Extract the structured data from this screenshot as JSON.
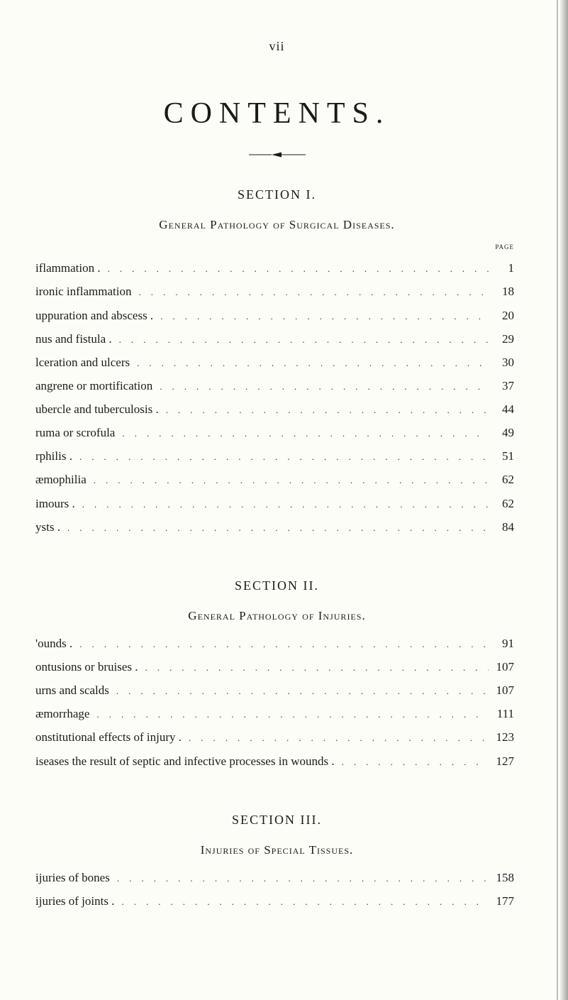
{
  "roman_page": "vii",
  "book_title": "CONTENTS.",
  "page_label": "page",
  "sections": [
    {
      "label": "SECTION   I.",
      "subtitle": "General Pathology of Surgical Diseases.",
      "show_page_header": true,
      "entries": [
        {
          "label": "iflammation .",
          "page": "1"
        },
        {
          "label": "ironic inflammation",
          "page": "18"
        },
        {
          "label": "uppuration and abscess  .",
          "page": "20"
        },
        {
          "label": "nus and fistula .",
          "page": "29"
        },
        {
          "label": "lceration and ulcers",
          "page": "30"
        },
        {
          "label": "angrene or mortification",
          "page": "37"
        },
        {
          "label": "ubercle and tuberculosis .",
          "page": "44"
        },
        {
          "label": "ruma or scrofula",
          "page": "49"
        },
        {
          "label": "rphilis .",
          "page": "51"
        },
        {
          "label": "æmophilia",
          "page": "62"
        },
        {
          "label": "imours .",
          "page": "62"
        },
        {
          "label": "ysts .",
          "page": "84"
        }
      ]
    },
    {
      "label": "SECTION   II.",
      "subtitle": "General Pathology of Injuries.",
      "show_page_header": false,
      "entries": [
        {
          "label": "'ounds .",
          "page": "91"
        },
        {
          "label": "ontusions or bruises  .",
          "page": "107"
        },
        {
          "label": "urns and scalds",
          "page": "107"
        },
        {
          "label": "æmorrhage",
          "page": "111"
        },
        {
          "label": "onstitutional effects of injury  .",
          "page": "123"
        },
        {
          "label": "iseases the result of septic and infective processes in wounds .",
          "page": "127"
        }
      ]
    },
    {
      "label": "SECTION   III.",
      "subtitle": "Injuries of Special Tissues.",
      "show_page_header": false,
      "entries": [
        {
          "label": "ijuries of bones",
          "page": "158"
        },
        {
          "label": "ijuries of joints .",
          "page": "177"
        }
      ]
    }
  ],
  "dot_fill": ".................................................."
}
